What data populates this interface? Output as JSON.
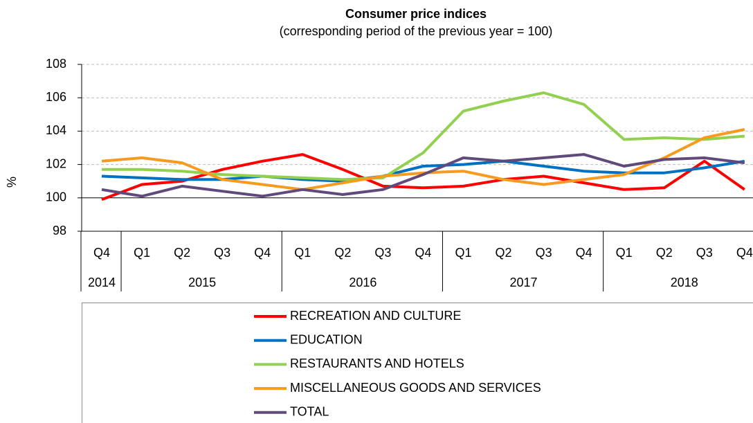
{
  "chart_data": {
    "type": "line",
    "title": "Consumer price indices",
    "subtitle": "(corresponding period of the previous year = 100)",
    "y_label": "%",
    "categories": [
      "Q4",
      "Q1",
      "Q2",
      "Q3",
      "Q4",
      "Q1",
      "Q2",
      "Q3",
      "Q4",
      "Q1",
      "Q2",
      "Q3",
      "Q4",
      "Q1",
      "Q2",
      "Q3",
      "Q4"
    ],
    "x_groups": [
      {
        "label": "2014",
        "count": 1
      },
      {
        "label": "2015",
        "count": 4
      },
      {
        "label": "2016",
        "count": 4
      },
      {
        "label": "2017",
        "count": 4
      },
      {
        "label": "2018",
        "count": 4
      }
    ],
    "ylim": [
      98,
      108
    ],
    "yticks": [
      98,
      100,
      102,
      104,
      106,
      108
    ],
    "grid": true,
    "baseline": 100,
    "legend": "bottom",
    "series": [
      {
        "name": "RECREATION AND CULTURE",
        "color": "#ff0000",
        "values": [
          99.9,
          100.8,
          101.0,
          101.7,
          102.2,
          102.6,
          101.7,
          100.7,
          100.6,
          100.7,
          101.1,
          101.3,
          100.9,
          100.5,
          100.6,
          102.2,
          100.5
        ]
      },
      {
        "name": "EDUCATION",
        "color": "#0070c0",
        "values": [
          101.3,
          101.2,
          101.1,
          101.1,
          101.3,
          101.1,
          101.0,
          101.3,
          101.9,
          102.0,
          102.2,
          101.9,
          101.6,
          101.5,
          101.5,
          101.8,
          102.2
        ]
      },
      {
        "name": "RESTAURANTS AND HOTELS",
        "color": "#92d050",
        "values": [
          101.7,
          101.7,
          101.6,
          101.4,
          101.3,
          101.2,
          101.1,
          101.2,
          102.7,
          105.2,
          105.8,
          106.3,
          105.6,
          103.5,
          103.6,
          103.5,
          103.7
        ]
      },
      {
        "name": "MISCELLANEOUS GOODS AND SERVICES",
        "color": "#f79a1e",
        "values": [
          102.2,
          102.4,
          102.1,
          101.1,
          100.8,
          100.5,
          100.9,
          101.3,
          101.5,
          101.6,
          101.1,
          100.8,
          101.1,
          101.4,
          102.4,
          103.6,
          104.1
        ]
      },
      {
        "name": "TOTAL",
        "color": "#604a7b",
        "values": [
          100.5,
          100.1,
          100.7,
          100.4,
          100.1,
          100.5,
          100.2,
          100.5,
          101.4,
          102.4,
          102.2,
          102.4,
          102.6,
          101.9,
          102.3,
          102.4,
          102.1
        ]
      }
    ]
  }
}
